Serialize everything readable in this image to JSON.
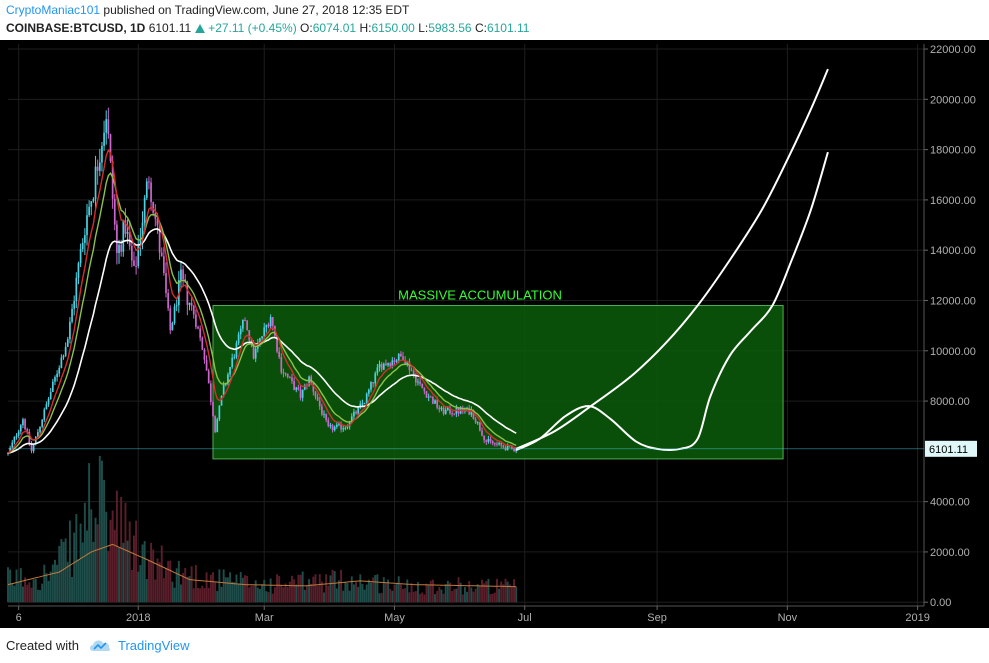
{
  "header": {
    "author": "CryptoManiac101",
    "published_text": "published on TradingView.com, June 27, 2018 12:35 EDT",
    "symbol": "COINBASE:BTCUSD, 1D",
    "last_price": "6101.11",
    "change": "+27.11 (+0.45%)",
    "o_label": "O:",
    "o_value": "6074.01",
    "h_label": "H:",
    "h_value": "6150.00",
    "l_label": "L:",
    "l_value": "5983.56",
    "c_label": "C:",
    "c_value": "6101.11"
  },
  "footer": {
    "created_with": "Created with",
    "brand": "TradingView",
    "icon": "tradingview-cloud-icon"
  },
  "colors": {
    "background": "#000000",
    "grid": "#1e1e1e",
    "bull": "#4dd0e1",
    "bear": "#cc66cc",
    "ema_fast": "#d32f2f",
    "ema_mid": "#8bc34a",
    "ema_slow": "#ffffff",
    "box_fill": "#0a5c0a",
    "box_border": "#4caf50",
    "annotation": "#33ff33",
    "projection": "#ffffff",
    "price_tag": "#e0f7fa"
  },
  "chart_data": {
    "type": "candlestick",
    "y_ticks": [
      "22000.00",
      "20000.00",
      "18000.00",
      "16000.00",
      "14000.00",
      "12000.00",
      "10000.00",
      "8000.00",
      "4000.00",
      "2000.00",
      "0.00"
    ],
    "y_tick_values": [
      22000,
      20000,
      18000,
      16000,
      14000,
      12000,
      10000,
      8000,
      4000,
      2000,
      0
    ],
    "ylim": [
      -150,
      22200
    ],
    "x_ticks": [
      "6",
      "2018",
      "Mar",
      "May",
      "Jul",
      "Sep",
      "Nov",
      "2019"
    ],
    "x_tick_dates": [
      "2017-11-06",
      "2018-01-01",
      "2018-03-01",
      "2018-05-01",
      "2018-07-01",
      "2018-09-01",
      "2018-11-01",
      "2019-01-01"
    ],
    "xlim": [
      "2017-11-01",
      "2019-01-04"
    ],
    "current_price_label": "6101.11",
    "current_price": 6101.11,
    "annotation": "MASSIVE ACCUMULATION",
    "box": {
      "date_start": "2018-02-05",
      "date_end": "2018-10-30",
      "price_low": 5700,
      "price_high": 11800
    },
    "price_anchors": [
      [
        "2017-11-01",
        5900
      ],
      [
        "2017-11-08",
        7300
      ],
      [
        "2017-11-12",
        6000
      ],
      [
        "2017-11-20",
        8100
      ],
      [
        "2017-11-29",
        10500
      ],
      [
        "2017-12-07",
        15000
      ],
      [
        "2017-12-11",
        16500
      ],
      [
        "2017-12-17",
        19500
      ],
      [
        "2017-12-22",
        13800
      ],
      [
        "2017-12-26",
        15000
      ],
      [
        "2017-12-30",
        13000
      ],
      [
        "2018-01-06",
        17000
      ],
      [
        "2018-01-12",
        13500
      ],
      [
        "2018-01-16",
        10800
      ],
      [
        "2018-01-21",
        12800
      ],
      [
        "2018-01-27",
        11500
      ],
      [
        "2018-02-01",
        9800
      ],
      [
        "2018-02-06",
        6900
      ],
      [
        "2018-02-10",
        8500
      ],
      [
        "2018-02-20",
        11300
      ],
      [
        "2018-02-24",
        9800
      ],
      [
        "2018-03-04",
        11400
      ],
      [
        "2018-03-09",
        9300
      ],
      [
        "2018-03-18",
        8200
      ],
      [
        "2018-03-22",
        8900
      ],
      [
        "2018-03-31",
        6900
      ],
      [
        "2018-04-08",
        7000
      ],
      [
        "2018-04-17",
        8000
      ],
      [
        "2018-04-24",
        9400
      ],
      [
        "2018-05-05",
        9800
      ],
      [
        "2018-05-13",
        8600
      ],
      [
        "2018-05-23",
        7600
      ],
      [
        "2018-06-02",
        7600
      ],
      [
        "2018-06-06",
        7600
      ],
      [
        "2018-06-13",
        6400
      ],
      [
        "2018-06-24",
        6100
      ],
      [
        "2018-06-27",
        6101
      ]
    ],
    "volume_anchors": [
      [
        "2017-11-01",
        900
      ],
      [
        "2017-11-20",
        1100
      ],
      [
        "2017-12-05",
        2600
      ],
      [
        "2017-12-10",
        4200
      ],
      [
        "2017-12-20",
        3200
      ],
      [
        "2018-01-05",
        1700
      ],
      [
        "2018-01-20",
        1200
      ],
      [
        "2018-02-06",
        900
      ],
      [
        "2018-03-01",
        700
      ],
      [
        "2018-04-10",
        900
      ],
      [
        "2018-05-01",
        700
      ],
      [
        "2018-06-10",
        650
      ],
      [
        "2018-06-27",
        600
      ]
    ],
    "volume_avg_anchors": [
      [
        "2017-11-01",
        700
      ],
      [
        "2017-11-25",
        1200
      ],
      [
        "2017-12-10",
        2000
      ],
      [
        "2017-12-20",
        2300
      ],
      [
        "2018-01-05",
        1700
      ],
      [
        "2018-01-25",
        900
      ],
      [
        "2018-02-20",
        700
      ],
      [
        "2018-03-20",
        650
      ],
      [
        "2018-04-15",
        850
      ],
      [
        "2018-05-10",
        700
      ],
      [
        "2018-06-27",
        620
      ]
    ],
    "projection_upper": [
      [
        "2018-06-27",
        6100
      ],
      [
        "2018-07-15",
        6800
      ],
      [
        "2018-08-01",
        7800
      ],
      [
        "2018-08-20",
        9000
      ],
      [
        "2018-09-05",
        10300
      ],
      [
        "2018-09-20",
        11800
      ],
      [
        "2018-10-05",
        13600
      ],
      [
        "2018-10-20",
        15600
      ],
      [
        "2018-11-01",
        17600
      ],
      [
        "2018-11-12",
        19600
      ],
      [
        "2018-11-20",
        21200
      ]
    ],
    "projection_lower": [
      [
        "2018-06-27",
        6050
      ],
      [
        "2018-07-08",
        6500
      ],
      [
        "2018-07-20",
        7400
      ],
      [
        "2018-07-31",
        7800
      ],
      [
        "2018-08-10",
        7300
      ],
      [
        "2018-08-22",
        6400
      ],
      [
        "2018-09-01",
        6100
      ],
      [
        "2018-09-12",
        6100
      ],
      [
        "2018-09-20",
        6500
      ],
      [
        "2018-09-26",
        8200
      ],
      [
        "2018-10-05",
        9800
      ],
      [
        "2018-10-15",
        10800
      ],
      [
        "2018-10-25",
        11800
      ],
      [
        "2018-11-03",
        13600
      ],
      [
        "2018-11-12",
        15600
      ],
      [
        "2018-11-20",
        17900
      ]
    ]
  }
}
